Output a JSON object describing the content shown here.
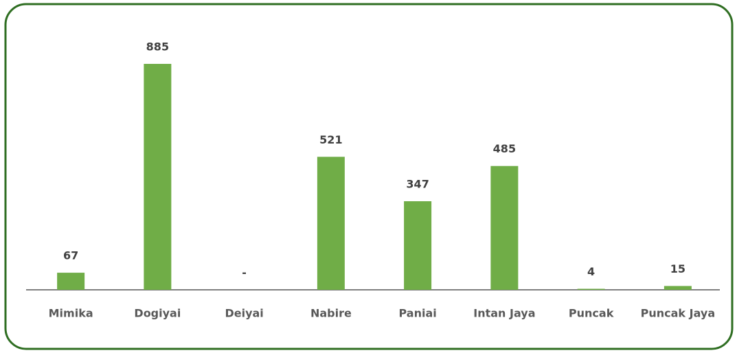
{
  "chart_data": {
    "type": "bar",
    "categories": [
      "Mimika",
      "Dogiyai",
      "Deiyai",
      "Nabire",
      "Paniai",
      "Intan Jaya",
      "Puncak",
      "Puncak Jaya"
    ],
    "values": [
      67,
      885,
      0,
      521,
      347,
      485,
      4,
      15
    ],
    "value_labels": [
      "67",
      "885",
      "-",
      "521",
      "347",
      "485",
      "4",
      "15"
    ],
    "color": "#70ad47"
  }
}
